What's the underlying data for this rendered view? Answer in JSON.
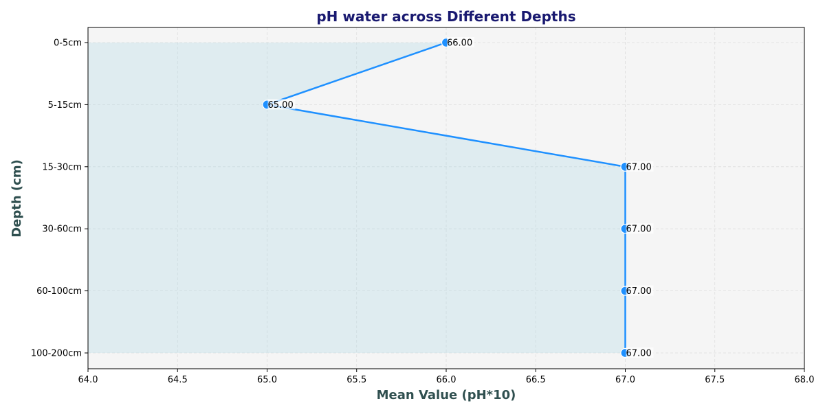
{
  "chart_data": {
    "type": "line",
    "orientation": "horizontal",
    "title": "pH water across Different Depths",
    "xlabel": "Mean Value (pH*10)",
    "ylabel": "Depth (cm)",
    "categories": [
      "0-5cm",
      "5-15cm",
      "15-30cm",
      "30-60cm",
      "60-100cm",
      "100-200cm"
    ],
    "values": [
      66,
      65,
      67,
      67,
      67,
      67
    ],
    "data_labels": [
      "66.00",
      "65.00",
      "67.00",
      "67.00",
      "67.00",
      "67.00"
    ],
    "xlim": [
      64,
      68
    ],
    "xticks": [
      "64.0",
      "64.5",
      "65.0",
      "65.5",
      "66.0",
      "66.5",
      "67.0",
      "67.5",
      "68.0"
    ],
    "grid": true,
    "fill_under_line": true,
    "colors": {
      "line": "#1E90FF",
      "marker": "#1E90FF",
      "fill": "#ADD8E6",
      "plot_background": "#F5F5F5",
      "title": "#191970",
      "axis_label": "#2F4F4F"
    }
  }
}
